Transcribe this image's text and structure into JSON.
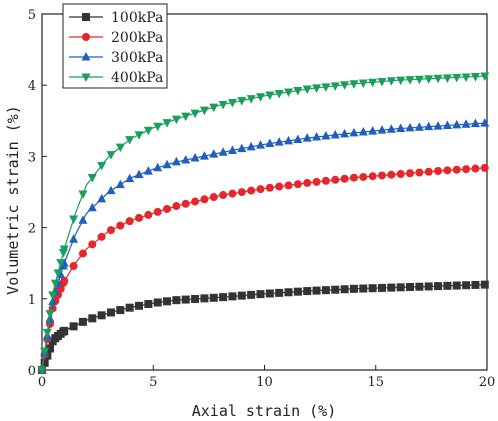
{
  "chart_data": {
    "type": "line",
    "xlabel": "Axial strain (%)",
    "ylabel": "Volumetric strain (%)",
    "xlim": [
      0,
      20
    ],
    "ylim": [
      0,
      5
    ],
    "x_ticks": [
      "0",
      "5",
      "10",
      "15",
      "20"
    ],
    "y_ticks": [
      "0",
      "1",
      "2",
      "3",
      "4",
      "5"
    ],
    "grid": false,
    "legend_position": "top-left",
    "series": [
      {
        "name": "100kPa",
        "color": "#333333",
        "marker": "square",
        "points": [
          [
            0,
            0
          ],
          [
            0.5,
            0.42
          ],
          [
            1,
            0.55
          ],
          [
            2,
            0.7
          ],
          [
            3,
            0.8
          ],
          [
            4,
            0.88
          ],
          [
            5,
            0.94
          ],
          [
            6,
            0.98
          ],
          [
            8,
            1.02
          ],
          [
            10,
            1.07
          ],
          [
            12,
            1.11
          ],
          [
            14,
            1.14
          ],
          [
            16,
            1.16
          ],
          [
            18,
            1.18
          ],
          [
            20,
            1.2
          ]
        ]
      },
      {
        "name": "200kPa",
        "color": "#e8262a",
        "marker": "circle",
        "points": [
          [
            0,
            0
          ],
          [
            0.5,
            0.9
          ],
          [
            1,
            1.25
          ],
          [
            1.5,
            1.5
          ],
          [
            2,
            1.7
          ],
          [
            3,
            1.95
          ],
          [
            4,
            2.1
          ],
          [
            5,
            2.2
          ],
          [
            6,
            2.3
          ],
          [
            8,
            2.45
          ],
          [
            10,
            2.55
          ],
          [
            12,
            2.63
          ],
          [
            14,
            2.7
          ],
          [
            16,
            2.75
          ],
          [
            18,
            2.8
          ],
          [
            20,
            2.84
          ]
        ]
      },
      {
        "name": "300kPa",
        "color": "#1f5fbf",
        "marker": "triangle-up",
        "points": [
          [
            0,
            0
          ],
          [
            0.5,
            1.0
          ],
          [
            1,
            1.5
          ],
          [
            1.5,
            1.9
          ],
          [
            2,
            2.2
          ],
          [
            3,
            2.5
          ],
          [
            4,
            2.7
          ],
          [
            5,
            2.82
          ],
          [
            6,
            2.92
          ],
          [
            8,
            3.05
          ],
          [
            10,
            3.17
          ],
          [
            12,
            3.26
          ],
          [
            14,
            3.33
          ],
          [
            16,
            3.39
          ],
          [
            18,
            3.43
          ],
          [
            20,
            3.47
          ]
        ]
      },
      {
        "name": "400kPa",
        "color": "#1a9e5c",
        "marker": "triangle-down",
        "points": [
          [
            0,
            0
          ],
          [
            0.5,
            1.1
          ],
          [
            1,
            1.7
          ],
          [
            1.5,
            2.2
          ],
          [
            2,
            2.6
          ],
          [
            3,
            3.0
          ],
          [
            4,
            3.25
          ],
          [
            5,
            3.4
          ],
          [
            6,
            3.52
          ],
          [
            8,
            3.72
          ],
          [
            10,
            3.85
          ],
          [
            12,
            3.95
          ],
          [
            14,
            4.02
          ],
          [
            16,
            4.07
          ],
          [
            18,
            4.1
          ],
          [
            20,
            4.13
          ]
        ]
      }
    ]
  }
}
